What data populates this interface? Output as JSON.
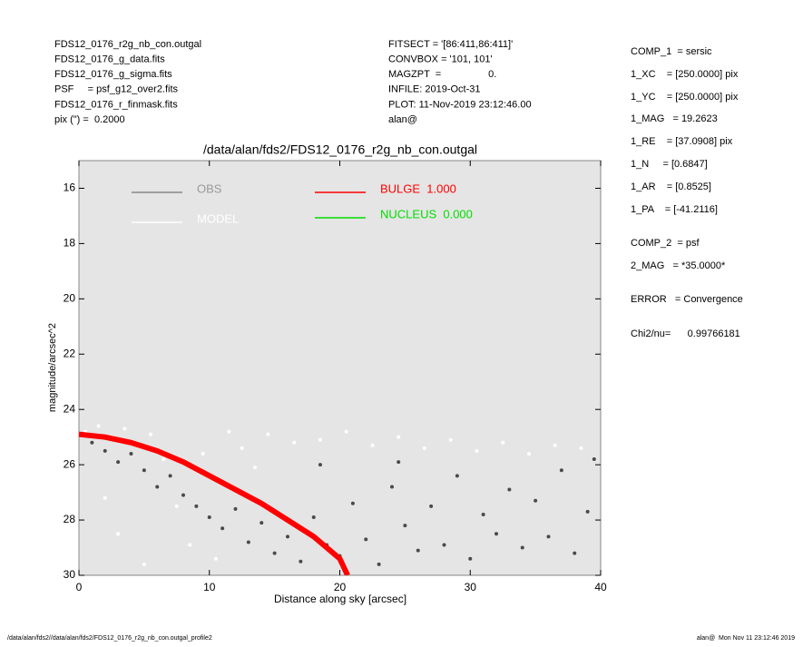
{
  "header": {
    "left": [
      "FDS12_0176_r2g_nb_con.outgal",
      "FDS12_0176_g_data.fits",
      "FDS12_0176_g_sigma.fits",
      "PSF     = psf_g12_over2.fits",
      "FDS12_0176_r_finmask.fits",
      "pix (\") =  0.2000"
    ],
    "middle": [
      "FITSECT = '[86:411,86:411]'",
      "CONVBOX = '101, 101'",
      "MAGZPT  =                 0.",
      "INFILE: 2019-Oct-31",
      "PLOT: 11-Nov-2019 23:12:46.00",
      "alan@"
    ],
    "right": [
      "COMP_1  = sersic",
      "1_XC    = [250.0000] pix",
      "1_YC    = [250.0000] pix",
      "1_MAG   = 19.2623",
      "1_RE    = [37.0908] pix",
      "1_N     = [0.6847]",
      "1_AR    = [0.8525]",
      "1_PA    = [-41.2116]",
      "COMP_2  = psf",
      "2_MAG   = *35.0000*",
      "ERROR   = Convergence",
      "Chi2/nu=      0.99766181"
    ]
  },
  "footer": {
    "left": "/data/alan/fds2//data/alan/fds2/FDS12_0176_r2g_nb_con.outgal_profile2",
    "right": "alan@  Mon Nov 11 23:12:46 2019"
  },
  "chart_data": {
    "type": "scatter",
    "title": "/data/alan/fds2/FDS12_0176_r2g_nb_con.outgal",
    "xlabel": "Distance along sky [arcsec]",
    "ylabel": "magnitude/arcsec^2",
    "xlim": [
      0,
      40
    ],
    "ylim": [
      30,
      15
    ],
    "xticks": [
      0,
      10,
      20,
      30,
      40
    ],
    "yticks": [
      16,
      18,
      20,
      22,
      24,
      26,
      28,
      30
    ],
    "series": [
      {
        "name": "OBS",
        "color": "#4a4a4a",
        "kind": "points",
        "x": [
          1,
          2,
          3,
          4,
          5,
          6,
          7,
          8,
          9,
          10,
          11,
          12,
          13,
          14,
          15,
          16,
          17,
          18,
          19,
          20,
          21,
          22,
          23,
          24,
          25,
          26,
          27,
          28,
          29,
          30,
          31,
          32,
          33,
          34,
          35,
          36,
          37,
          38,
          39,
          39.5,
          24.5,
          18.5
        ],
        "values": [
          25.2,
          25.5,
          25.9,
          25.6,
          26.2,
          26.8,
          26.4,
          27.1,
          27.5,
          27.9,
          28.3,
          27.6,
          28.8,
          28.1,
          29.2,
          28.6,
          29.5,
          27.9,
          28.9,
          29.3,
          27.4,
          28.7,
          29.6,
          26.8,
          28.2,
          29.1,
          27.5,
          28.9,
          26.4,
          29.4,
          27.8,
          28.5,
          26.9,
          29.0,
          27.3,
          28.6,
          26.2,
          29.2,
          27.7,
          25.8,
          25.9,
          26.0
        ]
      },
      {
        "name": "MODEL",
        "color": "#ffffff",
        "kind": "points",
        "x": [
          0.5,
          1.5,
          2.5,
          3.5,
          4.5,
          5.5,
          6.5,
          7.5,
          8.5,
          9.5,
          10.5,
          11.5,
          12.5,
          13.5,
          14.5,
          16.5,
          18.5,
          20.5,
          22.5,
          24.5,
          26.5,
          28.5,
          30.5,
          32.5,
          34.5,
          36.5,
          38.5,
          3,
          5,
          2
        ],
        "values": [
          24.8,
          24.6,
          25.0,
          24.7,
          25.3,
          24.9,
          25.8,
          27.5,
          28.9,
          25.6,
          29.4,
          24.8,
          25.4,
          26.1,
          24.9,
          25.2,
          25.1,
          24.8,
          25.3,
          25.0,
          25.4,
          25.1,
          25.5,
          25.2,
          25.6,
          25.3,
          25.4,
          28.5,
          29.6,
          27.2
        ]
      },
      {
        "name": "BULGE  1.000",
        "color": "#ff0000",
        "kind": "line",
        "x": [
          0,
          2,
          4,
          6,
          8,
          10,
          12,
          14,
          16,
          18,
          20,
          20.6
        ],
        "values": [
          24.9,
          25.0,
          25.2,
          25.5,
          25.9,
          26.4,
          26.9,
          27.4,
          28.0,
          28.6,
          29.4,
          30
        ]
      },
      {
        "name": "NUCLEUS  0.000",
        "color": "#00dd00",
        "kind": "line",
        "x": [],
        "values": []
      }
    ]
  }
}
